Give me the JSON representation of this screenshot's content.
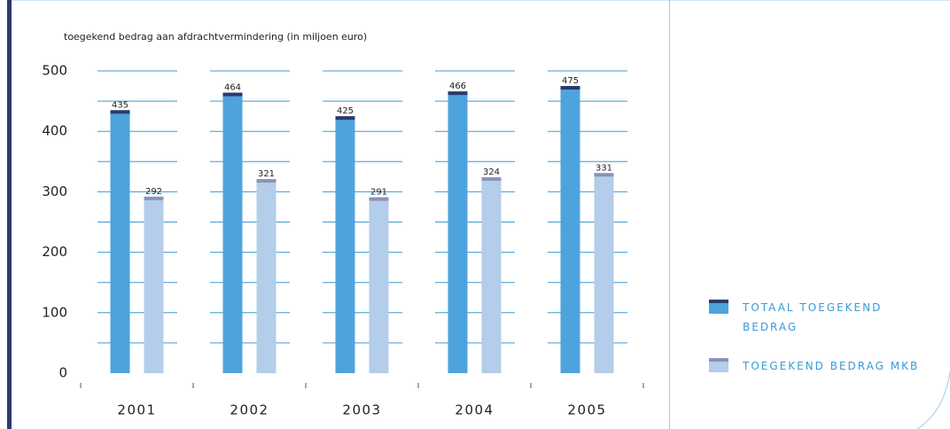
{
  "chart_data": {
    "type": "bar",
    "title": "toegekend bedrag aan afdrachtvermindering (in miljoen euro)",
    "categories": [
      "2001",
      "2002",
      "2003",
      "2004",
      "2005"
    ],
    "series": [
      {
        "name": "TOTAAL TOEGEKEND BEDRAG",
        "color": "#4fa3dc",
        "cap_color": "#2b3a6b",
        "values": [
          435,
          464,
          425,
          466,
          475
        ]
      },
      {
        "name": "TOEGEKEND BEDRAG MKB",
        "color": "#b3cdea",
        "cap_color": "#8a93b8",
        "values": [
          292,
          321,
          291,
          324,
          331
        ]
      }
    ],
    "ylim": [
      0,
      500
    ],
    "yticks": [
      0,
      100,
      200,
      300,
      400,
      500
    ],
    "minor_yticks": [
      50,
      150,
      250,
      350,
      450
    ],
    "grid": true,
    "legend": "right"
  }
}
